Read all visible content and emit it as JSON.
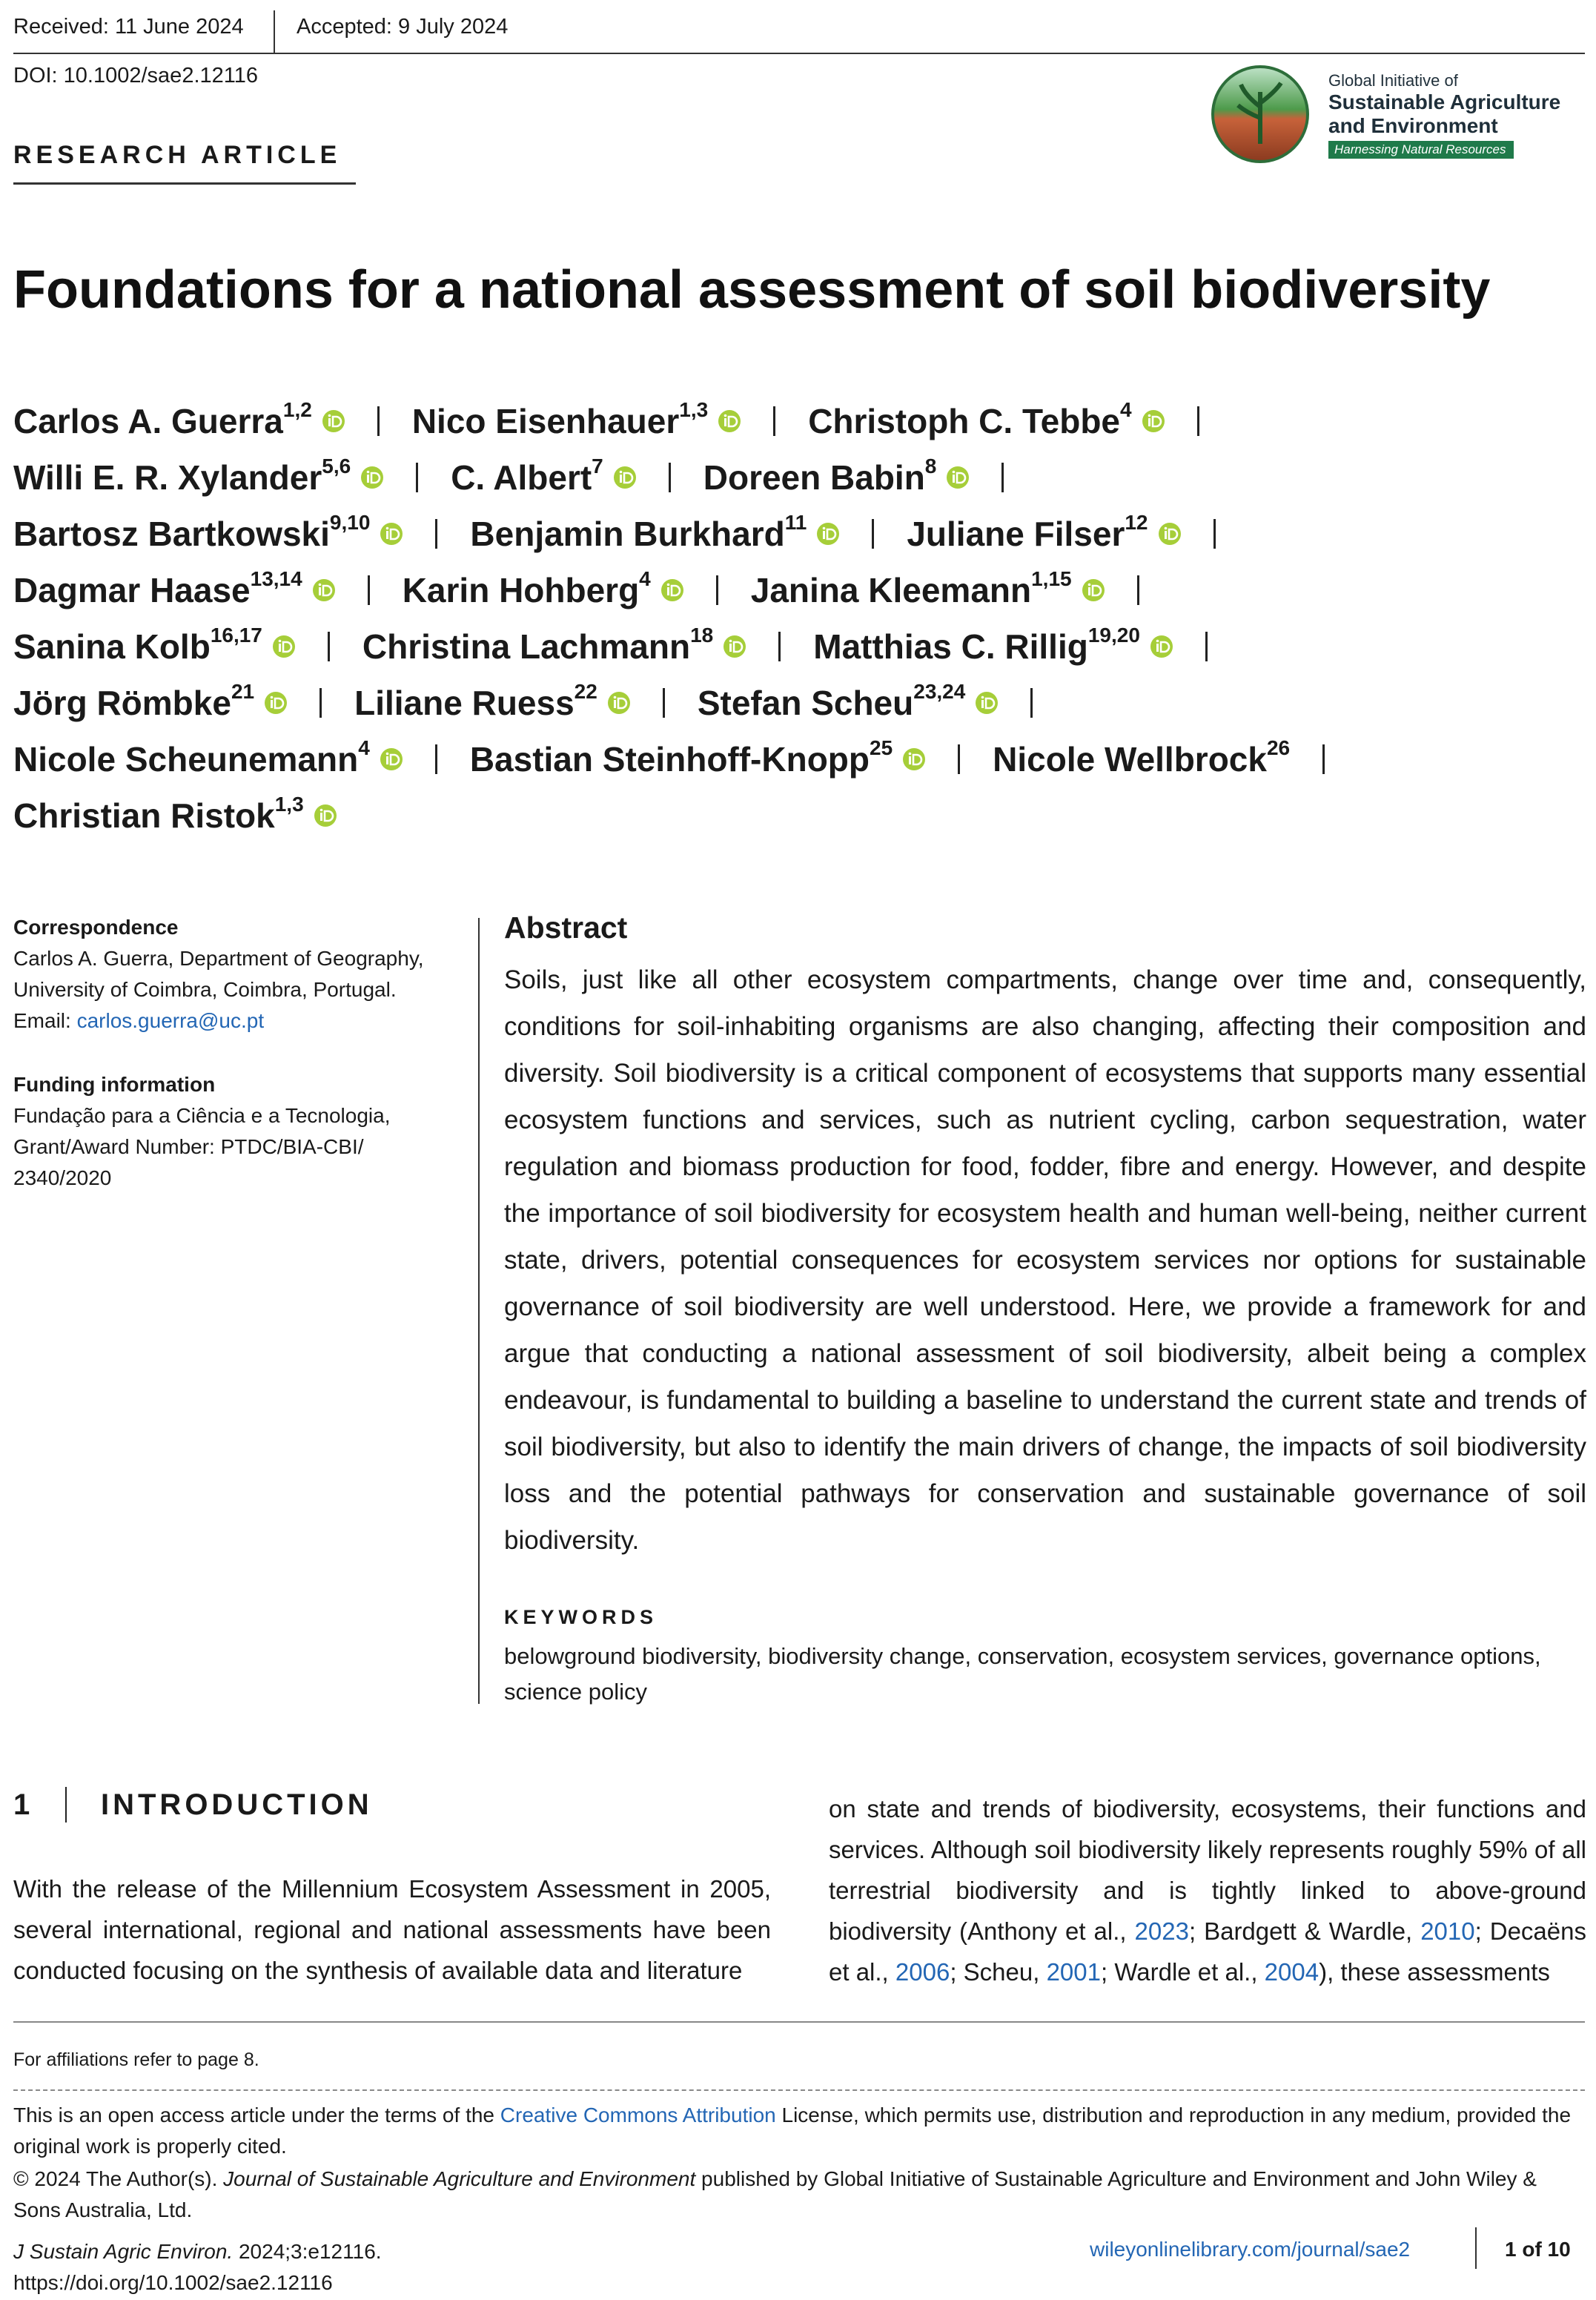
{
  "header": {
    "received": "Received: 11 June 2024",
    "accepted": "Accepted: 9 July 2024",
    "doi": "DOI: 10.1002/sae2.12116",
    "logo": {
      "line1": "Global Initiative of",
      "line2": "Sustainable Agriculture",
      "line3": "and Environment",
      "tagline": "Harnessing Natural Resources"
    }
  },
  "article_type": "RESEARCH ARTICLE",
  "title": "Foundations for a national assessment of soil biodiversity",
  "authors": [
    {
      "name": "Carlos A. Guerra",
      "affil": "1,2"
    },
    {
      "name": "Nico Eisenhauer",
      "affil": "1,3"
    },
    {
      "name": "Christoph C. Tebbe",
      "affil": "4"
    },
    {
      "name": "Willi E. R. Xylander",
      "affil": "5,6"
    },
    {
      "name": "C. Albert",
      "affil": "7"
    },
    {
      "name": "Doreen Babin",
      "affil": "8"
    },
    {
      "name": "Bartosz Bartkowski",
      "affil": "9,10"
    },
    {
      "name": "Benjamin Burkhard",
      "affil": "11"
    },
    {
      "name": "Juliane Filser",
      "affil": "12"
    },
    {
      "name": "Dagmar Haase",
      "affil": "13,14"
    },
    {
      "name": "Karin Hohberg",
      "affil": "4"
    },
    {
      "name": "Janina Kleemann",
      "affil": "1,15"
    },
    {
      "name": "Sanina Kolb",
      "affil": "16,17"
    },
    {
      "name": "Christina Lachmann",
      "affil": "18"
    },
    {
      "name": "Matthias C. Rillig",
      "affil": "19,20"
    },
    {
      "name": "Jörg Römbke",
      "affil": "21"
    },
    {
      "name": "Liliane Ruess",
      "affil": "22"
    },
    {
      "name": "Stefan Scheu",
      "affil": "23,24"
    },
    {
      "name": "Nicole Scheunemann",
      "affil": "4"
    },
    {
      "name": "Bastian Steinhoff-Knopp",
      "affil": "25"
    },
    {
      "name": "Nicole Wellbrock",
      "affil": "26"
    },
    {
      "name": "Christian Ristok",
      "affil": "1,3"
    }
  ],
  "correspondence": {
    "heading": "Correspondence",
    "lines": [
      "Carlos A. Guerra, Department of Geography,",
      "University of Coimbra, Coimbra, Portugal."
    ],
    "email_label": "Email:",
    "email": "carlos.guerra@uc.pt"
  },
  "funding": {
    "heading": "Funding information",
    "lines": [
      "Fundação para a Ciência e a Tecnologia,",
      "Grant/Award Number: PTDC/BIA-CBI/",
      "2340/2020"
    ]
  },
  "abstract": {
    "heading": "Abstract",
    "text": "Soils, just like all other ecosystem compartments, change over time and, consequently, conditions for soil-inhabiting organisms are also changing, affecting their composition and diversity. Soil biodiversity is a critical component of ecosystems that supports many essential ecosystem functions and services, such as nutrient cycling, carbon sequestration, water regulation and biomass production for food, fodder, fibre and energy. However, and despite the importance of soil biodiversity for ecosystem health and human well-being, neither current state, drivers, potential consequences for ecosystem services nor options for sustainable governance of soil biodiversity are well understood. Here, we provide a framework for and argue that conducting a national assessment of soil biodiversity, albeit being a complex endeavour, is fundamental to building a baseline to understand the current state and trends of soil biodiversity, but also to identify the main drivers of change, the impacts of soil biodiversity loss and the potential pathways for conservation and sustainable governance of soil biodiversity."
  },
  "keywords": {
    "heading": "KEYWORDS",
    "text": "belowground biodiversity, biodiversity change, conservation, ecosystem services, governance options, science policy"
  },
  "introduction": {
    "number": "1",
    "heading": "INTRODUCTION",
    "left": "With the release of the Millennium Ecosystem Assessment in 2005, several international, regional and national assessments have been conducted focusing on the synthesis of available data and literature",
    "right": [
      {
        "text": "on state and trends of biodiversity, ecosystems, their functions and services. Although soil biodiversity likely represents roughly 59% of all terrestrial biodiversity and is tightly linked to above-ground biodiversity (Anthony et al., "
      },
      {
        "link": "2023"
      },
      {
        "text": "; Bardgett & Wardle, "
      },
      {
        "link": "2010"
      },
      {
        "text": "; Decaëns et al., "
      },
      {
        "link": "2006"
      },
      {
        "text": "; Scheu, "
      },
      {
        "link": "2001"
      },
      {
        "text": "; Wardle et al., "
      },
      {
        "link": "2004"
      },
      {
        "text": "), these assessments"
      }
    ]
  },
  "footer": {
    "affiliations": "For affiliations refer to page 8.",
    "license": [
      {
        "text": "This is an open access article under the terms of the "
      },
      {
        "link": "Creative Commons Attribution"
      },
      {
        "text": " License, which permits use, distribution and reproduction in any medium, provided the original work is properly cited."
      }
    ],
    "copyright": [
      {
        "text": "© 2024 The Author(s). "
      },
      {
        "italic": "Journal of Sustainable Agriculture and Environment"
      },
      {
        "text": " published by Global Initiative of Sustainable Agriculture and Environment and John Wiley & Sons Australia, Ltd."
      }
    ],
    "journal": "J Sustain Agric Environ.",
    "citation": "2024;3:e12116.",
    "doi_url": "https://doi.org/10.1002/sae2.12116",
    "website": "wileyonlinelibrary.com/journal/sae2",
    "page": "1 of 10"
  }
}
